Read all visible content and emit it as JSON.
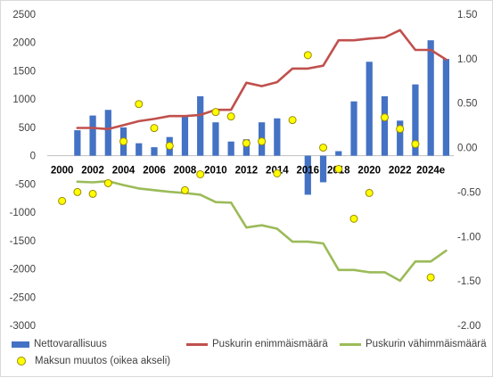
{
  "chart_data": {
    "type": "bar",
    "x": [
      2000,
      2001,
      2002,
      2003,
      2004,
      2005,
      2006,
      2007,
      2008,
      2009,
      2010,
      2011,
      2012,
      2013,
      2014,
      2015,
      2016,
      2017,
      2018,
      2019,
      2020,
      2021,
      2022,
      2023,
      2024,
      2025
    ],
    "x_tick_labels": [
      "2000",
      "2002",
      "2004",
      "2006",
      "2008",
      "2010",
      "2012",
      "2014",
      "2016",
      "2018",
      "2020",
      "2022",
      "2024e"
    ],
    "left_axis": {
      "ylim": [
        -3000,
        2500
      ],
      "ticks": [
        "2500",
        "2000",
        "1500",
        "1000",
        "500",
        "0",
        "-500",
        "-1000",
        "-1500",
        "-2000",
        "-2500",
        "-3000"
      ]
    },
    "right_axis": {
      "ylim": [
        -2.0,
        1.5
      ],
      "ticks": [
        "1.50",
        "1.00",
        "0.50",
        "0.00",
        "-0.50",
        "-1.00",
        "-1.50",
        "-2.00"
      ]
    },
    "series": [
      {
        "name": "Nettovarallisuus",
        "kind": "bar",
        "axis": "left",
        "color": "#4472c4",
        "values": [
          null,
          450,
          710,
          810,
          500,
          220,
          150,
          330,
          700,
          1050,
          590,
          250,
          290,
          590,
          660,
          null,
          -690,
          -470,
          80,
          960,
          1660,
          1050,
          620,
          1260,
          2040,
          1710
        ]
      },
      {
        "name": "Puskurin enimmäismäärä",
        "kind": "line",
        "axis": "left",
        "color": "#c0504d",
        "values": [
          null,
          490,
          490,
          470,
          540,
          610,
          650,
          700,
          700,
          720,
          810,
          810,
          1290,
          1230,
          1300,
          1540,
          1540,
          1590,
          2040,
          2040,
          2070,
          2090,
          2220,
          1870,
          1870,
          1700
        ]
      },
      {
        "name": "Puskurin vähimmäismäärä",
        "kind": "line",
        "axis": "left",
        "color": "#9bbb59",
        "values": [
          null,
          -460,
          -470,
          -450,
          -520,
          -580,
          -610,
          -640,
          -660,
          -690,
          -820,
          -830,
          -1270,
          -1230,
          -1290,
          -1520,
          -1520,
          -1550,
          -2020,
          -2020,
          -2060,
          -2060,
          -2210,
          -1870,
          -1870,
          -1680
        ]
      },
      {
        "name": "Maksun muutos (oikea akseli)",
        "kind": "scatter",
        "axis": "right",
        "color": "#ffff00",
        "values": [
          -0.6,
          -0.5,
          -0.52,
          -0.4,
          0.07,
          0.49,
          0.22,
          0.02,
          -0.48,
          -0.3,
          0.4,
          0.35,
          0.05,
          0.07,
          -0.29,
          0.31,
          1.04,
          0.0,
          -0.24,
          -0.8,
          -0.51,
          0.34,
          0.21,
          0.04,
          -1.46,
          null
        ]
      }
    ]
  }
}
